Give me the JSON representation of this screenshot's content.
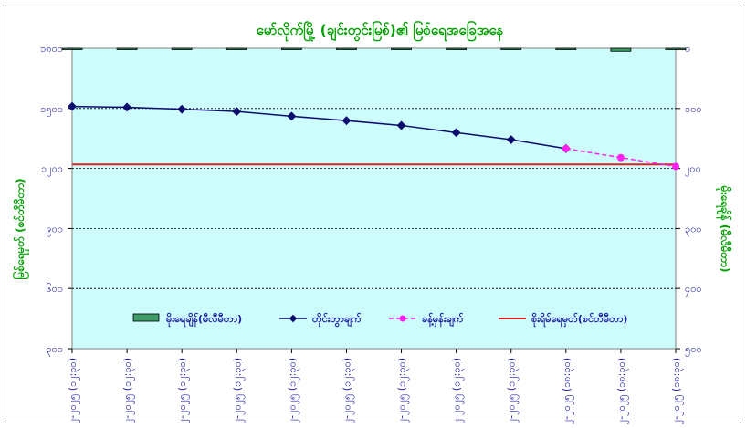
{
  "chart_data": {
    "type": "line",
    "title": "မော်လိုက်မြို့ (ချင်းတွင်းမြစ်)၏ မြစ်ရေအခြေအနေ",
    "ylabel_left": "မြစ်ရေမှတ် (စင်တီမီတာ)",
    "ylabel_right": "မိုးရေချိန် (မီလီမီတာ)",
    "categories": [
      "၁၀-၁၂-၂၀၂၅ (၁၂:၃၀)",
      "၁၁-၁၂-၂၀၂၅ (၁၂:၃၀)",
      "၁၂-၁၂-၂၀၂၅ (၁၂:၃၀)",
      "၁၃-၁၂-၂၀၂၅ (၁၂:၃၀)",
      "၁၄-၁၂-၂၀၂၅ (၁၂:၃၀)",
      "၁၅-၁၂-၂၀၂၅ (၁၂:၃၀)",
      "၁၆-၁၂-၂၀၂၅ (၁၂:၃၀)",
      "၁၇-၁၂-၂၀၂၅ (၁၂:၃၀)",
      "၁၈-၁၂-၂၀၂၅ (၁၂:၃၀)",
      "၁၉-၁၂-၂၀၂၅ (၁၈:၃၀)",
      "၂၀-၁၂-၂၀၂၅ (၁၈:၃၀)",
      "၂၁-၁၂-၂၀၂၅ (၁၈:၃၀)"
    ],
    "ylim_left": [
      300,
      1800
    ],
    "yticks_left": [
      "၃၀၀",
      "၆၀၀",
      "၉၀၀",
      "၁၂၀၀",
      "၁၅၀၀",
      "၁၈၀၀"
    ],
    "ylim_right": [
      0,
      500
    ],
    "right_axis_inverted": true,
    "yticks_right": [
      "၀",
      "၁၀၀",
      "၂၀၀",
      "၃၀၀",
      "၄၀၀",
      "၅၀၀"
    ],
    "series": [
      {
        "name": "မိုးရေချိန်(မီလီမီတာ)",
        "type": "bar",
        "axis": "right",
        "color": "#3c9b66",
        "values": [
          0,
          0,
          0,
          0,
          0,
          0,
          0,
          0,
          0,
          0,
          5,
          0
        ]
      },
      {
        "name": "တိုင်းတွာချက်",
        "type": "line",
        "axis": "left",
        "color": "#0c0c6e",
        "values": [
          1510,
          1506,
          1496,
          1485,
          1461,
          1439,
          1415,
          1379,
          1344,
          1299,
          null,
          null
        ]
      },
      {
        "name": "ခန့်မှန်းချက်",
        "type": "line",
        "axis": "left",
        "dashed": true,
        "color": "#ff22ee",
        "values": [
          null,
          null,
          null,
          null,
          null,
          null,
          null,
          null,
          null,
          1299,
          1254,
          1210
        ]
      },
      {
        "name": "စိုးရိမ်ရေမှတ်(စင်တီမီတာ)",
        "type": "hline",
        "axis": "left",
        "color": "#e02020",
        "value": 1220
      }
    ],
    "plot_background": "#ccfcfc",
    "grid": "horizontal-dashed",
    "legend_position": "bottom-inside"
  }
}
